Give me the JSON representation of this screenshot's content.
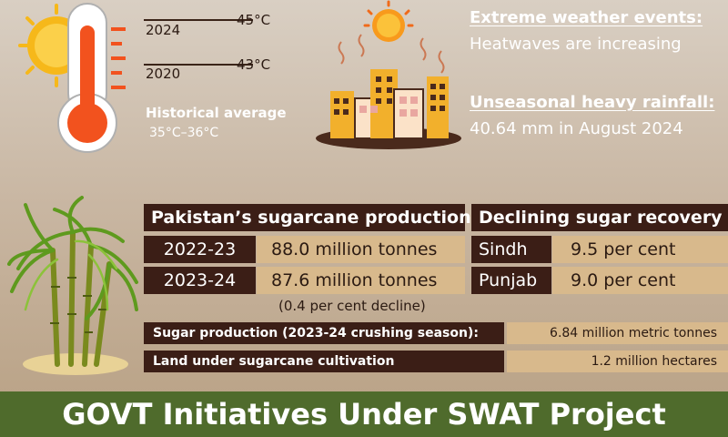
{
  "temperature": {
    "entries": [
      {
        "year": "2024",
        "temp": "45°C"
      },
      {
        "year": "2020",
        "temp": "43°C"
      }
    ],
    "historical_label": "Historical average",
    "historical_value": "35°C–36°C"
  },
  "weather": {
    "extreme_title": "Extreme weather events:",
    "extreme_value": "Heatwaves are increasing",
    "rain_title": "Unseasonal heavy rainfall:",
    "rain_value": "40.64 mm in August 2024"
  },
  "production": {
    "title": "Pakistan’s sugarcane production",
    "rows": [
      {
        "year": "2022-23",
        "value": "88.0 million tonnes"
      },
      {
        "year": "2023-24",
        "value": "87.6 million tonnes"
      }
    ],
    "note": "(0.4 per cent decline)"
  },
  "recovery": {
    "title": "Declining sugar recovery",
    "rows": [
      {
        "region": "Sindh",
        "value": "9.5 per cent"
      },
      {
        "region": "Punjab",
        "value": "9.0 per cent"
      }
    ]
  },
  "stats": [
    {
      "label": "Sugar production (2023-24 crushing season):",
      "value": "6.84 million metric tonnes"
    },
    {
      "label": "Land under sugarcane cultivation",
      "value": "1.2 million hectares"
    }
  ],
  "footer": {
    "title": "GOVT Initiatives Under SWAT Project"
  },
  "colors": {
    "dark": "#3b1e16",
    "light": "#d8b98c",
    "footer": "#4f6b2c",
    "thermo": "#f2521e"
  }
}
